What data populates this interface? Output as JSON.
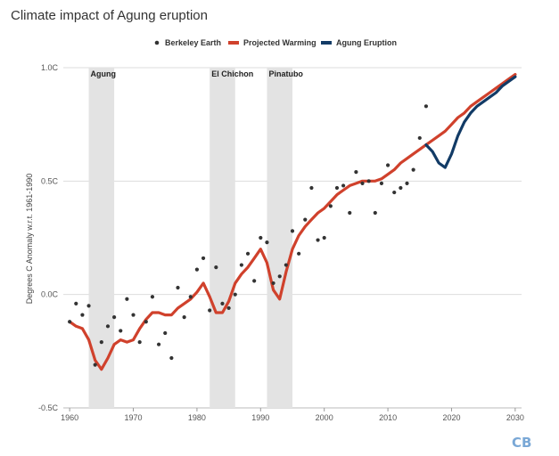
{
  "chart_data": {
    "type": "line",
    "title": "Climate impact of Agung eruption",
    "xlabel": "",
    "ylabel": "Degrees C Anomaly w.r.t. 1961-1990",
    "xlim": [
      1959,
      2031
    ],
    "ylim": [
      -0.5,
      1.0
    ],
    "x_ticks": [
      "1960",
      "1970",
      "1980",
      "1990",
      "2000",
      "2010",
      "2020",
      "2030"
    ],
    "y_ticks": [
      "1.0C",
      "0.5C",
      "0.0C",
      "-0.5C"
    ],
    "grid": "horizontal",
    "legend_position": "top",
    "eruption_bands": [
      {
        "name": "Agung",
        "start": 1963,
        "end": 1967
      },
      {
        "name": "El Chichon",
        "start": 1982,
        "end": 1986
      },
      {
        "name": "Pinatubo",
        "start": 1991,
        "end": 1995
      }
    ],
    "series": [
      {
        "name": "Berkeley Earth",
        "kind": "scatter",
        "color": "#333333",
        "x": [
          1960,
          1961,
          1962,
          1963,
          1964,
          1965,
          1966,
          1967,
          1968,
          1969,
          1970,
          1971,
          1972,
          1973,
          1974,
          1975,
          1976,
          1977,
          1978,
          1979,
          1980,
          1981,
          1982,
          1983,
          1984,
          1985,
          1986,
          1987,
          1988,
          1989,
          1990,
          1991,
          1992,
          1993,
          1994,
          1995,
          1996,
          1997,
          1998,
          1999,
          2000,
          2001,
          2002,
          2003,
          2004,
          2005,
          2006,
          2007,
          2008,
          2009,
          2010,
          2011,
          2012,
          2013,
          2014,
          2015,
          2016
        ],
        "y": [
          -0.12,
          -0.04,
          -0.09,
          -0.05,
          -0.31,
          -0.21,
          -0.14,
          -0.1,
          -0.16,
          -0.02,
          -0.09,
          -0.21,
          -0.12,
          -0.01,
          -0.22,
          -0.17,
          -0.28,
          0.03,
          -0.1,
          -0.01,
          0.11,
          0.16,
          -0.07,
          0.12,
          -0.04,
          -0.06,
          0.0,
          0.13,
          0.18,
          0.06,
          0.25,
          0.23,
          0.05,
          0.08,
          0.13,
          0.28,
          0.18,
          0.33,
          0.47,
          0.24,
          0.25,
          0.39,
          0.47,
          0.48,
          0.36,
          0.54,
          0.49,
          0.5,
          0.36,
          0.49,
          0.57,
          0.45,
          0.47,
          0.49,
          0.55,
          0.69,
          0.83
        ]
      },
      {
        "name": "Projected Warming",
        "kind": "line",
        "color": "#d0412c",
        "x": [
          1960,
          1961,
          1962,
          1963,
          1964,
          1965,
          1966,
          1967,
          1968,
          1969,
          1970,
          1971,
          1972,
          1973,
          1974,
          1975,
          1976,
          1977,
          1978,
          1979,
          1980,
          1981,
          1982,
          1983,
          1984,
          1985,
          1986,
          1987,
          1988,
          1989,
          1990,
          1991,
          1992,
          1993,
          1994,
          1995,
          1996,
          1997,
          1998,
          1999,
          2000,
          2001,
          2002,
          2003,
          2004,
          2005,
          2006,
          2007,
          2008,
          2009,
          2010,
          2011,
          2012,
          2013,
          2014,
          2015,
          2016,
          2017,
          2018,
          2019,
          2020,
          2021,
          2022,
          2023,
          2024,
          2025,
          2026,
          2027,
          2028,
          2029,
          2030
        ],
        "y": [
          -0.12,
          -0.14,
          -0.15,
          -0.2,
          -0.29,
          -0.33,
          -0.28,
          -0.22,
          -0.2,
          -0.21,
          -0.2,
          -0.15,
          -0.11,
          -0.08,
          -0.08,
          -0.09,
          -0.09,
          -0.06,
          -0.04,
          -0.02,
          0.01,
          0.05,
          -0.01,
          -0.08,
          -0.08,
          -0.03,
          0.05,
          0.09,
          0.12,
          0.16,
          0.2,
          0.14,
          0.02,
          -0.02,
          0.1,
          0.2,
          0.26,
          0.3,
          0.33,
          0.36,
          0.38,
          0.41,
          0.44,
          0.46,
          0.48,
          0.49,
          0.5,
          0.5,
          0.5,
          0.51,
          0.53,
          0.55,
          0.58,
          0.6,
          0.62,
          0.64,
          0.66,
          0.68,
          0.7,
          0.72,
          0.75,
          0.78,
          0.8,
          0.83,
          0.85,
          0.87,
          0.89,
          0.91,
          0.93,
          0.95,
          0.97
        ]
      },
      {
        "name": "Agung Eruption",
        "kind": "line",
        "color": "#123b66",
        "x": [
          2016,
          2017,
          2018,
          2019,
          2020,
          2021,
          2022,
          2023,
          2024,
          2025,
          2026,
          2027,
          2028,
          2029,
          2030
        ],
        "y": [
          0.66,
          0.63,
          0.58,
          0.56,
          0.62,
          0.7,
          0.76,
          0.8,
          0.83,
          0.85,
          0.87,
          0.89,
          0.92,
          0.94,
          0.96
        ]
      }
    ]
  },
  "logo": {
    "text": "CB",
    "color": "#7aa8d6"
  }
}
